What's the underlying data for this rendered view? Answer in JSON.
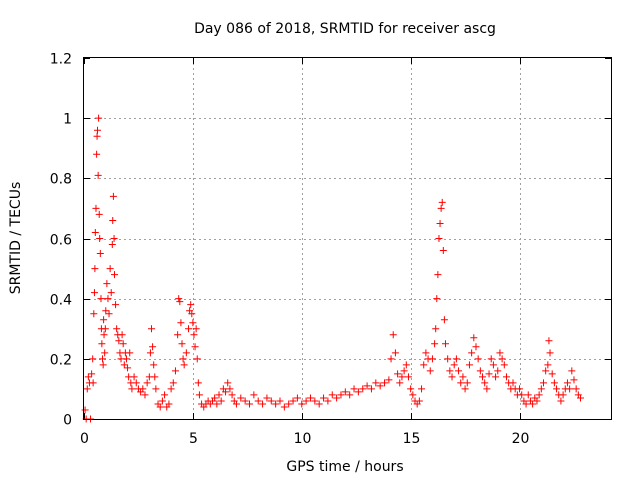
{
  "chart_data": {
    "type": "scatter",
    "title": "Day 086 of 2018, SRMTID for receiver ascg",
    "xlabel": "GPS time / hours",
    "ylabel": "SRMTID / TECUs",
    "xlim": [
      0,
      24.2
    ],
    "ylim": [
      0,
      1.2
    ],
    "xticks": [
      0,
      5,
      10,
      15,
      20
    ],
    "xtick_labels": [
      "0",
      "5",
      "10",
      "15",
      "20"
    ],
    "yticks": [
      0,
      0.2,
      0.4,
      0.6,
      0.8,
      1.0,
      1.2
    ],
    "ytick_labels": [
      "0",
      "0.2",
      "0.4",
      "0.6",
      "0.8",
      "1",
      "1.2"
    ],
    "grid": true,
    "marker": "+",
    "color": "#ff0000",
    "series": [
      {
        "name": "SRMTID",
        "points": [
          [
            0.05,
            0.03
          ],
          [
            0.1,
            0.0
          ],
          [
            0.15,
            0.1
          ],
          [
            0.2,
            0.14
          ],
          [
            0.25,
            0.12
          ],
          [
            0.3,
            0.0
          ],
          [
            0.35,
            0.15
          ],
          [
            0.4,
            0.2
          ],
          [
            0.42,
            0.12
          ],
          [
            0.45,
            0.35
          ],
          [
            0.48,
            0.42
          ],
          [
            0.5,
            0.5
          ],
          [
            0.52,
            0.62
          ],
          [
            0.55,
            0.7
          ],
          [
            0.58,
            0.88
          ],
          [
            0.6,
            0.94
          ],
          [
            0.62,
            0.96
          ],
          [
            0.65,
            0.81
          ],
          [
            0.67,
            1.0
          ],
          [
            0.7,
            0.68
          ],
          [
            0.72,
            0.6
          ],
          [
            0.75,
            0.55
          ],
          [
            0.78,
            0.4
          ],
          [
            0.8,
            0.3
          ],
          [
            0.82,
            0.25
          ],
          [
            0.85,
            0.2
          ],
          [
            0.88,
            0.18
          ],
          [
            0.9,
            0.33
          ],
          [
            0.92,
            0.28
          ],
          [
            0.95,
            0.22
          ],
          [
            0.98,
            0.3
          ],
          [
            1.0,
            0.36
          ],
          [
            1.05,
            0.45
          ],
          [
            1.1,
            0.4
          ],
          [
            1.15,
            0.35
          ],
          [
            1.2,
            0.5
          ],
          [
            1.25,
            0.42
          ],
          [
            1.3,
            0.58
          ],
          [
            1.32,
            0.66
          ],
          [
            1.35,
            0.74
          ],
          [
            1.38,
            0.6
          ],
          [
            1.4,
            0.48
          ],
          [
            1.45,
            0.38
          ],
          [
            1.5,
            0.3
          ],
          [
            1.55,
            0.28
          ],
          [
            1.6,
            0.26
          ],
          [
            1.65,
            0.22
          ],
          [
            1.7,
            0.2
          ],
          [
            1.75,
            0.28
          ],
          [
            1.8,
            0.25
          ],
          [
            1.85,
            0.18
          ],
          [
            1.9,
            0.22
          ],
          [
            1.95,
            0.2
          ],
          [
            2.0,
            0.17
          ],
          [
            2.05,
            0.14
          ],
          [
            2.1,
            0.22
          ],
          [
            2.15,
            0.12
          ],
          [
            2.2,
            0.1
          ],
          [
            2.3,
            0.14
          ],
          [
            2.4,
            0.12
          ],
          [
            2.5,
            0.1
          ],
          [
            2.6,
            0.09
          ],
          [
            2.7,
            0.1
          ],
          [
            2.8,
            0.08
          ],
          [
            2.9,
            0.12
          ],
          [
            3.0,
            0.14
          ],
          [
            3.05,
            0.22
          ],
          [
            3.1,
            0.3
          ],
          [
            3.15,
            0.24
          ],
          [
            3.2,
            0.18
          ],
          [
            3.25,
            0.14
          ],
          [
            3.3,
            0.1
          ],
          [
            3.4,
            0.05
          ],
          [
            3.5,
            0.04
          ],
          [
            3.6,
            0.06
          ],
          [
            3.7,
            0.08
          ],
          [
            3.8,
            0.04
          ],
          [
            3.9,
            0.05
          ],
          [
            4.0,
            0.1
          ],
          [
            4.1,
            0.12
          ],
          [
            4.2,
            0.16
          ],
          [
            4.3,
            0.28
          ],
          [
            4.35,
            0.4
          ],
          [
            4.4,
            0.39
          ],
          [
            4.45,
            0.32
          ],
          [
            4.5,
            0.25
          ],
          [
            4.55,
            0.2
          ],
          [
            4.6,
            0.18
          ],
          [
            4.7,
            0.22
          ],
          [
            4.8,
            0.3
          ],
          [
            4.85,
            0.36
          ],
          [
            4.9,
            0.38
          ],
          [
            4.95,
            0.35
          ],
          [
            5.0,
            0.32
          ],
          [
            5.05,
            0.28
          ],
          [
            5.1,
            0.24
          ],
          [
            5.15,
            0.3
          ],
          [
            5.2,
            0.2
          ],
          [
            5.25,
            0.12
          ],
          [
            5.3,
            0.08
          ],
          [
            5.4,
            0.05
          ],
          [
            5.5,
            0.04
          ],
          [
            5.6,
            0.05
          ],
          [
            5.7,
            0.06
          ],
          [
            5.8,
            0.05
          ],
          [
            5.9,
            0.06
          ],
          [
            6.0,
            0.07
          ],
          [
            6.1,
            0.05
          ],
          [
            6.2,
            0.08
          ],
          [
            6.3,
            0.06
          ],
          [
            6.4,
            0.1
          ],
          [
            6.5,
            0.09
          ],
          [
            6.6,
            0.12
          ],
          [
            6.7,
            0.1
          ],
          [
            6.8,
            0.08
          ],
          [
            6.9,
            0.06
          ],
          [
            7.0,
            0.05
          ],
          [
            7.2,
            0.07
          ],
          [
            7.4,
            0.06
          ],
          [
            7.6,
            0.05
          ],
          [
            7.8,
            0.08
          ],
          [
            8.0,
            0.06
          ],
          [
            8.2,
            0.05
          ],
          [
            8.4,
            0.07
          ],
          [
            8.6,
            0.06
          ],
          [
            8.8,
            0.05
          ],
          [
            9.0,
            0.06
          ],
          [
            9.2,
            0.04
          ],
          [
            9.4,
            0.05
          ],
          [
            9.6,
            0.06
          ],
          [
            9.8,
            0.07
          ],
          [
            10.0,
            0.05
          ],
          [
            10.2,
            0.06
          ],
          [
            10.4,
            0.07
          ],
          [
            10.6,
            0.06
          ],
          [
            10.8,
            0.05
          ],
          [
            11.0,
            0.07
          ],
          [
            11.2,
            0.06
          ],
          [
            11.4,
            0.08
          ],
          [
            11.6,
            0.07
          ],
          [
            11.8,
            0.08
          ],
          [
            12.0,
            0.09
          ],
          [
            12.2,
            0.08
          ],
          [
            12.4,
            0.1
          ],
          [
            12.6,
            0.09
          ],
          [
            12.8,
            0.1
          ],
          [
            13.0,
            0.11
          ],
          [
            13.2,
            0.1
          ],
          [
            13.4,
            0.12
          ],
          [
            13.6,
            0.11
          ],
          [
            13.8,
            0.12
          ],
          [
            14.0,
            0.13
          ],
          [
            14.1,
            0.2
          ],
          [
            14.2,
            0.28
          ],
          [
            14.3,
            0.22
          ],
          [
            14.4,
            0.15
          ],
          [
            14.5,
            0.12
          ],
          [
            14.6,
            0.14
          ],
          [
            14.7,
            0.16
          ],
          [
            14.8,
            0.18
          ],
          [
            14.9,
            0.14
          ],
          [
            15.0,
            0.1
          ],
          [
            15.1,
            0.08
          ],
          [
            15.2,
            0.06
          ],
          [
            15.3,
            0.05
          ],
          [
            15.4,
            0.06
          ],
          [
            15.5,
            0.1
          ],
          [
            15.6,
            0.18
          ],
          [
            15.7,
            0.22
          ],
          [
            15.8,
            0.2
          ],
          [
            15.9,
            0.16
          ],
          [
            16.0,
            0.2
          ],
          [
            16.1,
            0.25
          ],
          [
            16.15,
            0.3
          ],
          [
            16.2,
            0.4
          ],
          [
            16.25,
            0.48
          ],
          [
            16.3,
            0.6
          ],
          [
            16.35,
            0.65
          ],
          [
            16.4,
            0.7
          ],
          [
            16.45,
            0.72
          ],
          [
            16.5,
            0.56
          ],
          [
            16.55,
            0.33
          ],
          [
            16.6,
            0.25
          ],
          [
            16.7,
            0.2
          ],
          [
            16.8,
            0.16
          ],
          [
            16.9,
            0.14
          ],
          [
            17.0,
            0.18
          ],
          [
            17.1,
            0.2
          ],
          [
            17.2,
            0.16
          ],
          [
            17.3,
            0.12
          ],
          [
            17.4,
            0.14
          ],
          [
            17.5,
            0.1
          ],
          [
            17.6,
            0.12
          ],
          [
            17.7,
            0.18
          ],
          [
            17.8,
            0.22
          ],
          [
            17.9,
            0.27
          ],
          [
            18.0,
            0.24
          ],
          [
            18.1,
            0.2
          ],
          [
            18.2,
            0.16
          ],
          [
            18.3,
            0.14
          ],
          [
            18.4,
            0.12
          ],
          [
            18.5,
            0.1
          ],
          [
            18.6,
            0.15
          ],
          [
            18.7,
            0.2
          ],
          [
            18.8,
            0.18
          ],
          [
            18.9,
            0.14
          ],
          [
            19.0,
            0.16
          ],
          [
            19.1,
            0.22
          ],
          [
            19.2,
            0.2
          ],
          [
            19.3,
            0.18
          ],
          [
            19.4,
            0.14
          ],
          [
            19.5,
            0.12
          ],
          [
            19.6,
            0.1
          ],
          [
            19.7,
            0.12
          ],
          [
            19.8,
            0.1
          ],
          [
            19.9,
            0.08
          ],
          [
            20.0,
            0.1
          ],
          [
            20.1,
            0.08
          ],
          [
            20.2,
            0.06
          ],
          [
            20.3,
            0.05
          ],
          [
            20.4,
            0.08
          ],
          [
            20.5,
            0.06
          ],
          [
            20.6,
            0.05
          ],
          [
            20.7,
            0.07
          ],
          [
            20.8,
            0.06
          ],
          [
            20.9,
            0.08
          ],
          [
            21.0,
            0.1
          ],
          [
            21.1,
            0.12
          ],
          [
            21.2,
            0.16
          ],
          [
            21.3,
            0.18
          ],
          [
            21.35,
            0.26
          ],
          [
            21.4,
            0.22
          ],
          [
            21.5,
            0.15
          ],
          [
            21.6,
            0.12
          ],
          [
            21.7,
            0.1
          ],
          [
            21.8,
            0.08
          ],
          [
            21.9,
            0.06
          ],
          [
            22.0,
            0.08
          ],
          [
            22.1,
            0.1
          ],
          [
            22.2,
            0.12
          ],
          [
            22.3,
            0.1
          ],
          [
            22.4,
            0.16
          ],
          [
            22.5,
            0.13
          ],
          [
            22.6,
            0.1
          ],
          [
            22.7,
            0.08
          ],
          [
            22.8,
            0.07
          ]
        ]
      }
    ]
  }
}
